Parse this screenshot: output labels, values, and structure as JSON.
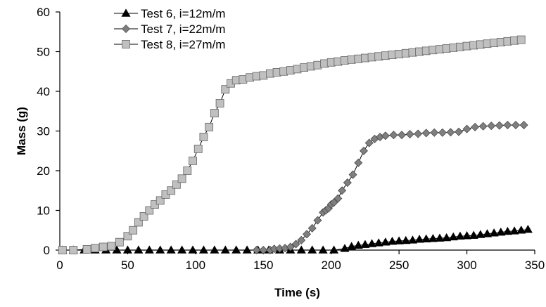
{
  "chart_data": {
    "type": "line",
    "title": "",
    "xlabel": "Time (s)",
    "ylabel": "Mass (g)",
    "xlim": [
      0,
      350
    ],
    "ylim": [
      0,
      60
    ],
    "xticks": [
      0,
      50,
      100,
      150,
      200,
      250,
      300,
      350
    ],
    "yticks": [
      0,
      10,
      20,
      30,
      40,
      50,
      60
    ],
    "grid": false,
    "legend_position": "top-left",
    "series": [
      {
        "name": "Test 6, i=12m/m",
        "marker": "triangle",
        "color": "#000000",
        "x": [
          2,
          10,
          18,
          26,
          34,
          42,
          50,
          58,
          66,
          74,
          82,
          90,
          98,
          106,
          114,
          122,
          130,
          138,
          146,
          154,
          162,
          170,
          178,
          186,
          194,
          202,
          210,
          215,
          220,
          225,
          230,
          235,
          240,
          245,
          250,
          255,
          260,
          265,
          270,
          275,
          280,
          285,
          290,
          295,
          300,
          305,
          310,
          315,
          320,
          325,
          330,
          335,
          340,
          345
        ],
        "y": [
          0,
          0,
          0,
          0,
          0,
          0,
          0,
          0,
          0,
          0,
          0,
          0,
          0,
          0,
          0,
          0,
          0,
          0,
          0,
          0,
          0,
          0,
          0,
          0,
          0,
          0,
          0.4,
          0.9,
          1.2,
          1.4,
          1.6,
          1.8,
          2.0,
          2.2,
          2.3,
          2.4,
          2.5,
          2.7,
          2.8,
          2.9,
          3.0,
          3.1,
          3.3,
          3.5,
          3.6,
          3.7,
          3.9,
          4.1,
          4.3,
          4.5,
          4.7,
          4.8,
          5.0,
          5.2
        ]
      },
      {
        "name": "Test 7, i=22m/m",
        "marker": "diamond",
        "color": "#7f7f7f",
        "x": [
          145,
          150,
          155,
          158,
          162,
          166,
          170,
          174,
          178,
          182,
          186,
          190,
          194,
          196,
          198,
          200,
          202,
          205,
          208,
          212,
          216,
          220,
          224,
          228,
          232,
          236,
          240,
          246,
          252,
          258,
          264,
          270,
          276,
          282,
          288,
          294,
          300,
          306,
          312,
          318,
          324,
          330,
          336,
          342
        ],
        "y": [
          0,
          0,
          0,
          0.3,
          0.4,
          0.5,
          0.8,
          1.5,
          2.5,
          4.0,
          5.5,
          7.5,
          9.5,
          10.0,
          10.5,
          11.5,
          12.0,
          13.0,
          15.0,
          17.0,
          19.0,
          22.0,
          25.0,
          27.0,
          28.0,
          28.5,
          28.8,
          29.0,
          29.0,
          29.2,
          29.3,
          29.5,
          29.6,
          29.6,
          29.7,
          29.8,
          30.5,
          31.0,
          31.2,
          31.3,
          31.4,
          31.5,
          31.5,
          31.5
        ]
      },
      {
        "name": "Test 8, i=27m/m",
        "marker": "square",
        "color": "#c0c0c0",
        "x": [
          2,
          10,
          20,
          26,
          32,
          38,
          44,
          50,
          54,
          58,
          62,
          66,
          70,
          74,
          78,
          82,
          86,
          90,
          94,
          98,
          102,
          106,
          110,
          114,
          118,
          122,
          126,
          130,
          135,
          140,
          145,
          150,
          155,
          160,
          165,
          170,
          175,
          180,
          185,
          190,
          195,
          200,
          205,
          210,
          215,
          220,
          225,
          230,
          235,
          240,
          245,
          250,
          255,
          260,
          265,
          270,
          275,
          280,
          285,
          290,
          295,
          300,
          305,
          310,
          315,
          320,
          325,
          330,
          335,
          340
        ],
        "y": [
          0,
          0,
          0.2,
          0.5,
          0.8,
          1.0,
          2.0,
          3.5,
          5.0,
          7.0,
          8.5,
          10.0,
          11.5,
          12.5,
          14.0,
          15.0,
          16.5,
          18.0,
          20.0,
          22.5,
          25.5,
          28.5,
          31.0,
          34.5,
          37.0,
          40.5,
          42.0,
          42.8,
          43.0,
          43.5,
          43.8,
          44.0,
          44.5,
          44.8,
          45.0,
          45.3,
          45.6,
          46.0,
          46.3,
          46.6,
          47.0,
          47.3,
          47.5,
          47.8,
          48.0,
          48.2,
          48.4,
          48.6,
          48.8,
          49.0,
          49.2,
          49.4,
          49.6,
          49.8,
          50.0,
          50.2,
          50.4,
          50.6,
          50.8,
          51.0,
          51.2,
          51.4,
          51.6,
          51.8,
          52.0,
          52.2,
          52.4,
          52.6,
          52.8,
          53.0
        ]
      }
    ]
  }
}
